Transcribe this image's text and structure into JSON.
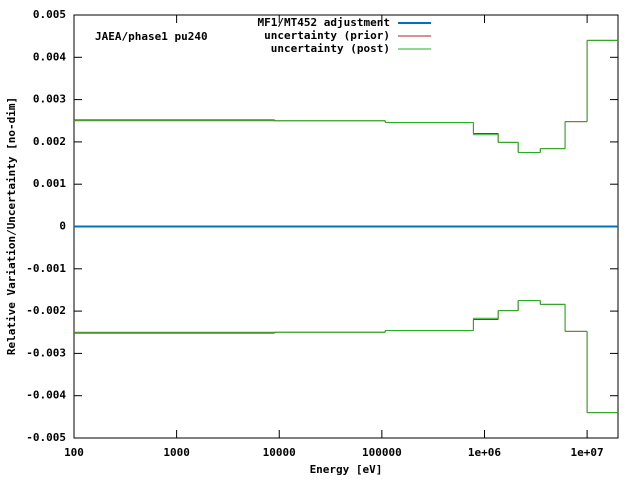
{
  "chart_data": {
    "type": "step",
    "annotation": "JAEA/phase1 pu240",
    "x_label": "Energy [eV]",
    "y_label": "Relative Variation/Uncertainty [no-dim]",
    "x_log": true,
    "legend": "top-right",
    "xlim": [
      100,
      20000000
    ],
    "ylim": [
      -0.005,
      0.005
    ],
    "xticks": [
      100,
      1000,
      10000,
      100000,
      {
        "value": 1000000,
        "label": "1e+06"
      },
      {
        "value": 10000000,
        "label": "1e+07"
      }
    ],
    "yticks": [
      0.005,
      0.004,
      0.003,
      0.002,
      0.001,
      0,
      -0.001,
      -0.002,
      -0.003,
      -0.004,
      -0.005
    ],
    "series": [
      {
        "name": "MF1/MT452 adjustment",
        "color": "#0072bd",
        "bins": [
          100,
          20000000
        ],
        "values": [
          0
        ]
      },
      {
        "name": "uncertainty (prior)",
        "color": "#b22222",
        "bins": [
          100,
          9000,
          108000,
          780000,
          1360000,
          2130000,
          3500000,
          6100000,
          10000000,
          20000000
        ],
        "values": [
          0.00252,
          0.0025,
          0.00246,
          0.0022,
          0.00199,
          0.00175,
          0.00184,
          0.00248,
          0.0044
        ],
        "lower": [
          -0.00252,
          -0.0025,
          -0.00246,
          -0.0022,
          -0.00199,
          -0.00175,
          -0.00184,
          -0.00248,
          -0.0044
        ]
      },
      {
        "name": "uncertainty (post)",
        "color": "#22b022",
        "bins": [
          100,
          9000,
          108000,
          780000,
          1360000,
          2130000,
          3500000,
          6100000,
          10000000,
          20000000
        ],
        "values": [
          0.0025,
          0.0025,
          0.00246,
          0.00217,
          0.00199,
          0.00175,
          0.00184,
          0.00248,
          0.0044
        ],
        "lower": [
          -0.0025,
          -0.0025,
          -0.00246,
          -0.00217,
          -0.00199,
          -0.00175,
          -0.00184,
          -0.00248,
          -0.0044
        ]
      }
    ]
  }
}
